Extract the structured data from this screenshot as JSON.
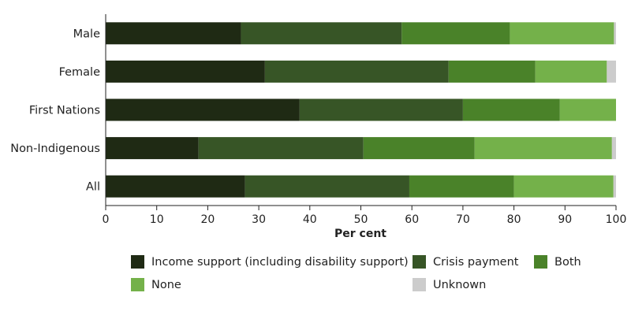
{
  "chart_data": {
    "type": "bar",
    "orientation": "horizontal",
    "stacked": true,
    "categories": [
      "Male",
      "Female",
      "First Nations",
      "Non-Indigenous",
      "All"
    ],
    "xlabel": "Per cent",
    "ylabel": "",
    "xlim": [
      0,
      100
    ],
    "xticks": [
      0,
      10,
      20,
      30,
      40,
      50,
      60,
      70,
      80,
      90,
      100
    ],
    "grid": false,
    "legend_position": "bottom",
    "series": [
      {
        "name": "Income support (including disability support)",
        "color": "#1f2a14",
        "values": [
          26.5,
          31.2,
          38.0,
          18.2,
          27.3
        ]
      },
      {
        "name": "Crisis payment",
        "color": "#375526",
        "values": [
          31.5,
          36.0,
          32.0,
          32.3,
          32.2
        ]
      },
      {
        "name": "Both",
        "color": "#4a8229",
        "values": [
          21.2,
          17.0,
          19.0,
          21.8,
          20.5
        ]
      },
      {
        "name": "None",
        "color": "#74b14a",
        "values": [
          20.4,
          14.0,
          11.0,
          26.9,
          19.5
        ]
      },
      {
        "name": "Unknown",
        "color": "#cccccc",
        "values": [
          0.4,
          1.8,
          0.0,
          0.8,
          0.5
        ]
      }
    ]
  }
}
